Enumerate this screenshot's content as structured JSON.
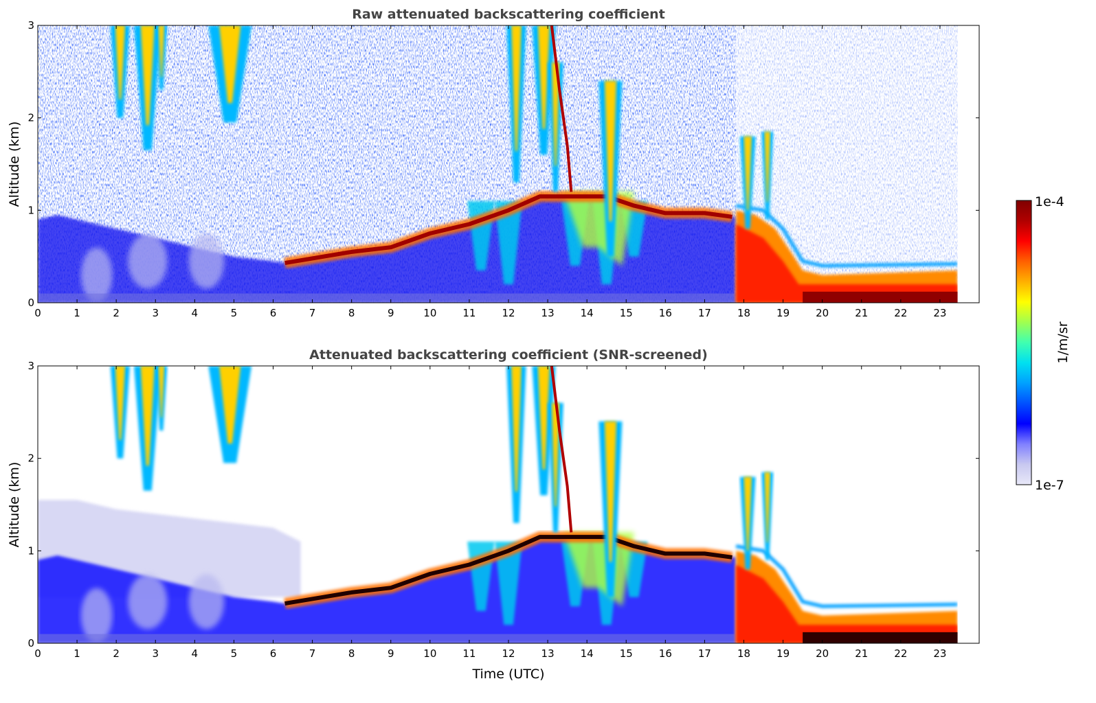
{
  "chart_data": [
    {
      "type": "heatmap",
      "title": "Raw attenuated backscattering coefficient",
      "xlabel": "",
      "ylabel": "Altitude (km)",
      "xlim": [
        0,
        24
      ],
      "ylim": [
        0,
        3
      ],
      "xticks": [
        "0",
        "1",
        "2",
        "3",
        "4",
        "5",
        "6",
        "7",
        "8",
        "9",
        "10",
        "11",
        "12",
        "13",
        "14",
        "15",
        "16",
        "17",
        "18",
        "19",
        "20",
        "21",
        "22",
        "23"
      ],
      "yticks": [
        "0",
        "1",
        "2",
        "3"
      ],
      "data_extent_time": [
        0,
        23.45
      ],
      "features": [
        {
          "kind": "boundary_layer_top",
          "points": [
            [
              6.3,
              0.43
            ],
            [
              8,
              0.55
            ],
            [
              9,
              0.6
            ],
            [
              10,
              0.75
            ],
            [
              11,
              0.85
            ],
            [
              12,
              1.0
            ],
            [
              12.8,
              1.15
            ],
            [
              13.5,
              1.15
            ],
            [
              14.5,
              1.15
            ],
            [
              15.2,
              1.05
            ],
            [
              16,
              0.97
            ],
            [
              17,
              0.97
            ],
            [
              17.7,
              0.93
            ]
          ]
        },
        {
          "kind": "residual_layer",
          "points": [
            [
              17.8,
              0.85
            ],
            [
              18.5,
              0.75
            ],
            [
              19,
              0.55
            ],
            [
              19.5,
              0.25
            ],
            [
              20,
              0.12
            ],
            [
              23.4,
              0.12
            ]
          ]
        },
        {
          "kind": "cirrus_streaks",
          "times": [
            2.1,
            2.6,
            3.1,
            4.9,
            12.1,
            12.8,
            13.3,
            14.6
          ]
        }
      ]
    },
    {
      "type": "heatmap",
      "title": "Attenuated backscattering coefficient (SNR-screened)",
      "xlabel": "Time (UTC)",
      "ylabel": "Altitude (km)",
      "xlim": [
        0,
        24
      ],
      "ylim": [
        0,
        3
      ],
      "xticks": [
        "0",
        "1",
        "2",
        "3",
        "4",
        "5",
        "6",
        "7",
        "8",
        "9",
        "10",
        "11",
        "12",
        "13",
        "14",
        "15",
        "16",
        "17",
        "18",
        "19",
        "20",
        "21",
        "22",
        "23"
      ],
      "yticks": [
        "0",
        "1",
        "2",
        "3"
      ],
      "data_extent_time": [
        0,
        23.45
      ]
    }
  ],
  "colorbar": {
    "label": "1/m/sr",
    "max_label": "1e-4",
    "min_label": "1e-7",
    "range": [
      1e-07,
      0.0001
    ],
    "scale": "log",
    "colormap": [
      "#e8e8f8",
      "#c8c8f0",
      "#8080ff",
      "#0000ff",
      "#0050ff",
      "#00a0ff",
      "#00e0f0",
      "#40ffb0",
      "#a0ff50",
      "#ffff00",
      "#ffb000",
      "#ff6000",
      "#ff0000",
      "#b00000",
      "#800000"
    ]
  }
}
